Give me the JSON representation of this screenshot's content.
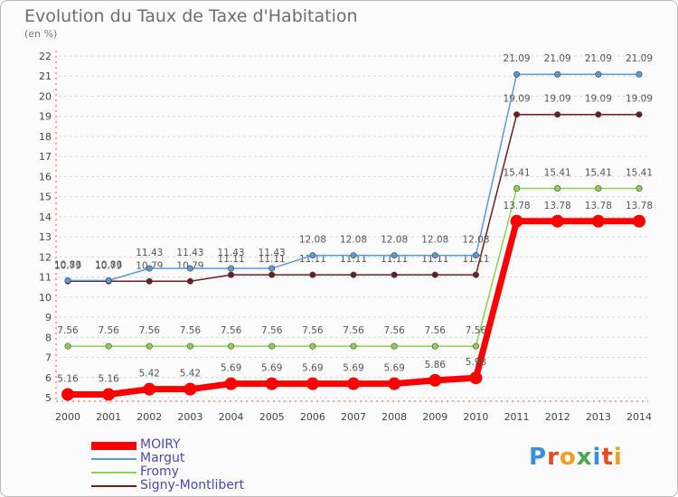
{
  "title": "Evolution du Taux de Taxe d'Habitation",
  "unit": "(en %)",
  "logo": "Proxiti",
  "colors": {
    "MOIRY": "#ff0000",
    "Margut": "#5b9bd5",
    "Fromy": "#8fd14f",
    "Signy-Montlibert": "#6b1e1e",
    "grid": "#e05050"
  },
  "chart_data": {
    "type": "line",
    "x": [
      "2000",
      "2001",
      "2002",
      "2003",
      "2004",
      "2005",
      "2006",
      "2007",
      "2008",
      "2009",
      "2010",
      "2011",
      "2012",
      "2013",
      "2014"
    ],
    "ylim": [
      5,
      22
    ],
    "yticks": [
      5,
      6,
      7,
      8,
      9,
      10,
      11,
      12,
      13,
      14,
      15,
      16,
      17,
      18,
      19,
      20,
      21,
      22
    ],
    "series": [
      {
        "name": "Signy-Montlibert",
        "values": [
          10.79,
          10.79,
          10.79,
          10.79,
          11.11,
          11.11,
          11.11,
          11.11,
          11.11,
          11.11,
          11.11,
          19.09,
          19.09,
          19.09,
          19.09
        ]
      },
      {
        "name": "Fromy",
        "values": [
          7.56,
          7.56,
          7.56,
          7.56,
          7.56,
          7.56,
          7.56,
          7.56,
          7.56,
          7.56,
          7.56,
          15.41,
          15.41,
          15.41,
          15.41
        ]
      },
      {
        "name": "Margut",
        "values": [
          10.83,
          10.83,
          11.43,
          11.43,
          11.43,
          11.43,
          12.08,
          12.08,
          12.08,
          12.08,
          12.08,
          21.09,
          21.09,
          21.09,
          21.09
        ]
      },
      {
        "name": "MOIRY",
        "values": [
          5.16,
          5.16,
          5.42,
          5.42,
          5.69,
          5.69,
          5.69,
          5.69,
          5.69,
          5.86,
          5.98,
          13.78,
          13.78,
          13.78,
          13.78
        ]
      }
    ],
    "legend": [
      "MOIRY",
      "Margut",
      "Fromy",
      "Signy-Montlibert"
    ],
    "legend_position": "bottom-left",
    "grid": "horizontal dashed"
  }
}
